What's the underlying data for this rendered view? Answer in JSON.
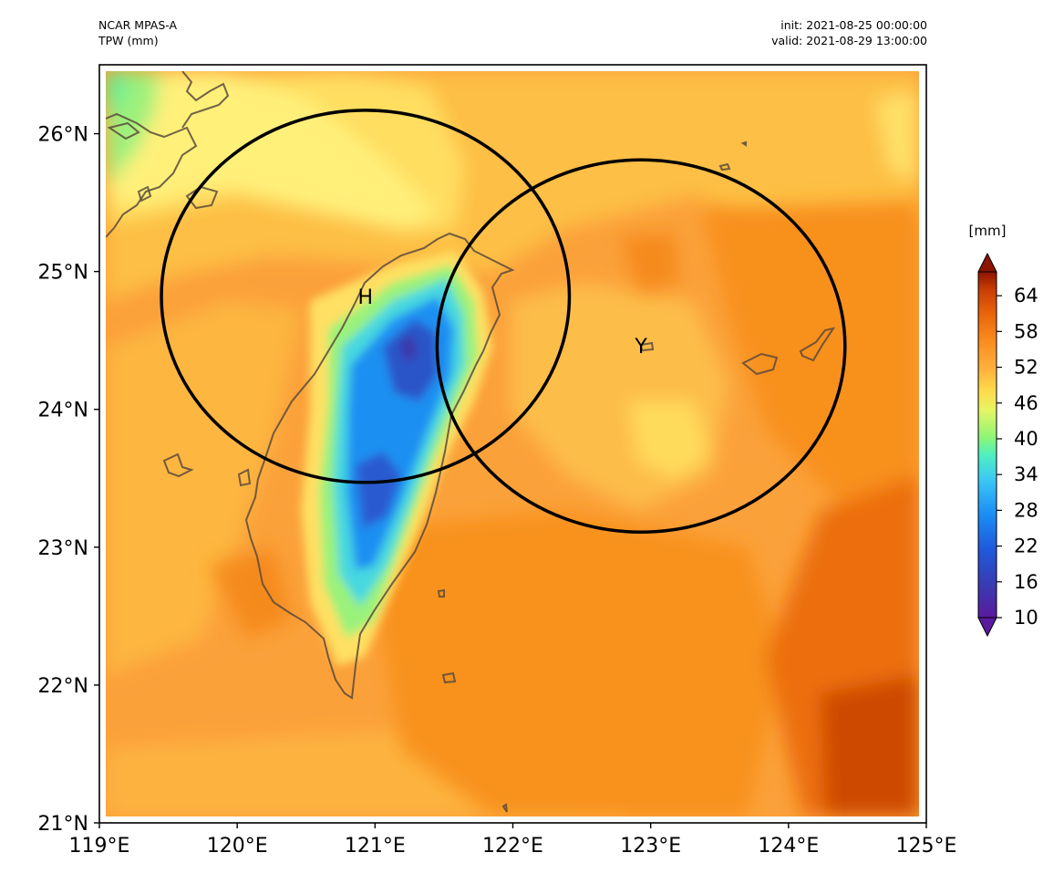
{
  "header": {
    "model": "NCAR MPAS-A",
    "field": "TPW (mm)",
    "init": "init: 2021-08-25 00:00:00",
    "valid": "valid: 2021-08-29 13:00:00"
  },
  "map": {
    "projection": "PlateCarree",
    "extent_lon": [
      119,
      125
    ],
    "extent_lat": [
      21,
      26.5
    ],
    "x_ticks": [
      "119°E",
      "120°E",
      "121°E",
      "122°E",
      "123°E",
      "124°E",
      "125°E"
    ],
    "y_ticks": [
      "21°N",
      "22°N",
      "23°N",
      "24°N",
      "25°N",
      "26°N"
    ],
    "markers": [
      {
        "label": "H",
        "lon": 120.93,
        "lat": 24.82
      },
      {
        "label": "Y",
        "lon": 122.93,
        "lat": 24.46
      }
    ],
    "circles": [
      {
        "center_lon": 120.93,
        "center_lat": 24.82,
        "radius_lon": 1.48,
        "radius_lat": 1.35
      },
      {
        "center_lon": 122.93,
        "center_lat": 24.46,
        "radius_lon": 1.48,
        "radius_lat": 1.35
      }
    ]
  },
  "colorbar": {
    "unit": "[mm]",
    "ticks": [
      "10",
      "16",
      "22",
      "28",
      "34",
      "40",
      "46",
      "52",
      "58",
      "64"
    ],
    "range": [
      10,
      68
    ],
    "colors": [
      "#5a1a9e",
      "#3a3ab0",
      "#1e5adc",
      "#1c8ef5",
      "#3cc8f5",
      "#4ef0c0",
      "#8cf578",
      "#e6f564",
      "#ffd84a",
      "#ffb03c",
      "#fa8c1e",
      "#e8640a",
      "#c83c04",
      "#8c1400"
    ]
  },
  "colors": {
    "circle": "#000000",
    "coastline": "#5a4a3c"
  }
}
